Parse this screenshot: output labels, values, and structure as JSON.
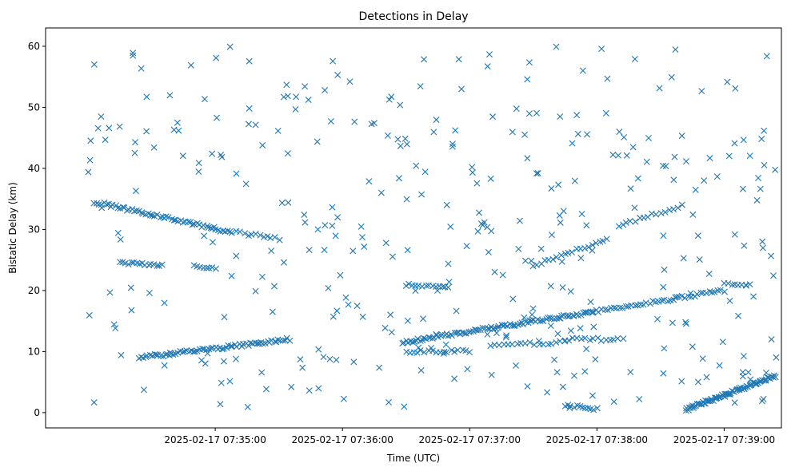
{
  "chart_data": {
    "type": "scatter",
    "title": "Detections in Delay",
    "xlabel": "Time (UTC)",
    "ylabel": "Bistatic Delay (km)",
    "marker": "x",
    "color": "#1f77b4",
    "x_unit": "seconds after 07:34:00",
    "xlim": [
      -20,
      327
    ],
    "ylim": [
      -2.5,
      63
    ],
    "x_ticks": [
      {
        "value": 60,
        "label": "2025-02-17 07:35:00"
      },
      {
        "value": 120,
        "label": "2025-02-17 07:36:00"
      },
      {
        "value": 180,
        "label": "2025-02-17 07:37:00"
      },
      {
        "value": 240,
        "label": "2025-02-17 07:38:00"
      },
      {
        "value": 300,
        "label": "2025-02-17 07:39:00"
      }
    ],
    "y_ticks": [
      {
        "value": 0,
        "label": "0"
      },
      {
        "value": 10,
        "label": "10"
      },
      {
        "value": 20,
        "label": "20"
      },
      {
        "value": 30,
        "label": "30"
      },
      {
        "value": 40,
        "label": "40"
      },
      {
        "value": 50,
        "label": "50"
      },
      {
        "value": 60,
        "label": "60"
      }
    ],
    "tracks": [
      {
        "name": "descending-track-upper",
        "x_start": 3,
        "x_end": 68,
        "y_start": 34.5,
        "y_end": 29.5,
        "count": 60
      },
      {
        "name": "descending-track-lower",
        "x_start": 70,
        "x_end": 90,
        "y_start": 29.5,
        "y_end": 28.5,
        "count": 12
      },
      {
        "name": "rising-track-main",
        "x_start": 24,
        "x_end": 95,
        "y_start": 9,
        "y_end": 12,
        "count": 70
      },
      {
        "name": "rising-track-mid",
        "x_start": 148,
        "x_end": 238,
        "y_start": 11.5,
        "y_end": 16.5,
        "count": 95
      },
      {
        "name": "rising-track-late",
        "x_start": 238,
        "x_end": 300,
        "y_start": 16.5,
        "y_end": 20,
        "count": 45
      },
      {
        "name": "plateau-24km",
        "x_start": 15,
        "x_end": 35,
        "y_start": 24.5,
        "y_end": 24.2,
        "count": 16
      },
      {
        "name": "plateau-24km-b",
        "x_start": 50,
        "x_end": 60,
        "y_start": 24,
        "y_end": 23.5,
        "count": 8
      },
      {
        "name": "plateau-21km",
        "x_start": 150,
        "x_end": 170,
        "y_start": 21,
        "y_end": 20.5,
        "count": 14
      },
      {
        "name": "rising-track-24-27",
        "x_start": 210,
        "x_end": 245,
        "y_start": 24,
        "y_end": 28.5,
        "count": 20
      },
      {
        "name": "rising-track-30-34",
        "x_start": 250,
        "x_end": 280,
        "y_start": 30.5,
        "y_end": 34,
        "count": 16
      },
      {
        "name": "flat-10km",
        "x_start": 150,
        "x_end": 180,
        "y_start": 10,
        "y_end": 10,
        "count": 18
      },
      {
        "name": "flat-11km",
        "x_start": 190,
        "x_end": 225,
        "y_start": 11,
        "y_end": 11.5,
        "count": 18
      },
      {
        "name": "flat-12km-b",
        "x_start": 225,
        "x_end": 250,
        "y_start": 12,
        "y_end": 12,
        "count": 14
      },
      {
        "name": "near-zero-descending",
        "x_start": 225,
        "x_end": 240,
        "y_start": 1.2,
        "y_end": 0.5,
        "count": 12
      },
      {
        "name": "near-zero-rising",
        "x_start": 282,
        "x_end": 324,
        "y_start": 0.5,
        "y_end": 6,
        "count": 80
      },
      {
        "name": "plateau-21km-late",
        "x_start": 300,
        "x_end": 312,
        "y_start": 21,
        "y_end": 21,
        "count": 8
      }
    ],
    "clutter": {
      "count": 360,
      "x_range": [
        0,
        325
      ],
      "y_range": [
        0.5,
        60
      ],
      "seed": 42
    }
  }
}
